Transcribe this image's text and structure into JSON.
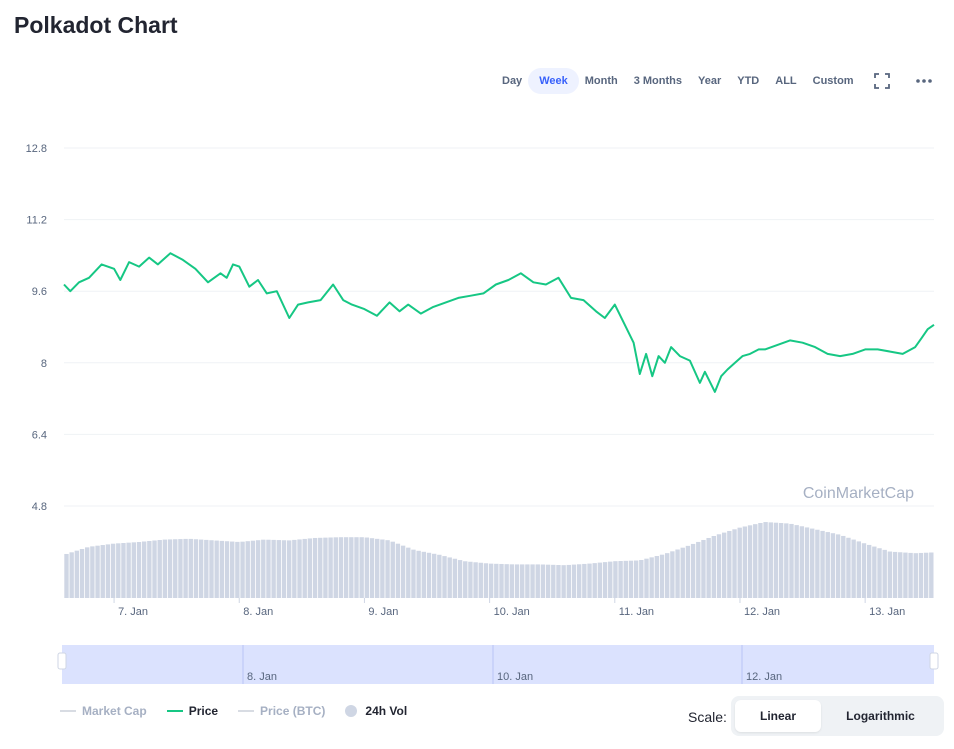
{
  "title": "Polkadot Chart",
  "ranges": [
    "Day",
    "Week",
    "Month",
    "3 Months",
    "Year",
    "YTD",
    "ALL",
    "Custom"
  ],
  "active_range": "Week",
  "icons": {
    "fullscreen": "fullscreen-icon",
    "more": "more-options-icon"
  },
  "watermark": "CoinMarketCap",
  "colors": {
    "price": "#16c784",
    "volume": "#cfd6e4",
    "grid": "#eff2f5",
    "navigator": "#cfd8fd",
    "accent": "#3861fb"
  },
  "legend": [
    {
      "label": "Market Cap",
      "kind": "line",
      "color": "#d8dce3",
      "text_color": "#a6b0c3"
    },
    {
      "label": "Price",
      "kind": "line",
      "color": "#16c784",
      "text_color": "#222531"
    },
    {
      "label": "Price (BTC)",
      "kind": "line",
      "color": "#d8dce3",
      "text_color": "#a6b0c3"
    },
    {
      "label": "24h Vol",
      "kind": "dot",
      "color": "#cfd6e4",
      "text_color": "#222531"
    }
  ],
  "scale": {
    "label": "Scale:",
    "options": [
      "Linear",
      "Logarithmic"
    ],
    "active": "Linear"
  },
  "chart_data": {
    "type": "line",
    "y_ticks": [
      "12.8",
      "11.2",
      "9.6",
      "8",
      "6.4",
      "4.8"
    ],
    "ylim": [
      4.8,
      12.8
    ],
    "x_ticks": [
      "7. Jan",
      "8. Jan",
      "9. Jan",
      "10. Jan",
      "11. Jan",
      "12. Jan",
      "13. Jan"
    ],
    "navigator_ticks": [
      "8. Jan",
      "10. Jan",
      "12. Jan"
    ],
    "price_series": {
      "name": "Price",
      "x": [
        6.6,
        6.65,
        6.72,
        6.8,
        6.9,
        7.0,
        7.05,
        7.12,
        7.2,
        7.28,
        7.35,
        7.45,
        7.55,
        7.65,
        7.75,
        7.85,
        7.9,
        7.95,
        8.0,
        8.08,
        8.15,
        8.22,
        8.3,
        8.4,
        8.47,
        8.55,
        8.65,
        8.75,
        8.83,
        8.9,
        9.0,
        9.1,
        9.2,
        9.28,
        9.35,
        9.45,
        9.55,
        9.65,
        9.75,
        9.85,
        9.95,
        10.05,
        10.15,
        10.25,
        10.35,
        10.45,
        10.55,
        10.65,
        10.75,
        10.85,
        10.92,
        11.0,
        11.08,
        11.15,
        11.2,
        11.25,
        11.3,
        11.35,
        11.4,
        11.45,
        11.52,
        11.6,
        11.68,
        11.72,
        11.8,
        11.85,
        11.9,
        11.96,
        12.02,
        12.08,
        12.15,
        12.2,
        12.3,
        12.4,
        12.5,
        12.6,
        12.7,
        12.8,
        12.9,
        13.0,
        13.1,
        13.2,
        13.3,
        13.4,
        13.45,
        13.5,
        13.55
      ],
      "y": [
        9.75,
        9.6,
        9.8,
        9.9,
        10.2,
        10.1,
        9.85,
        10.25,
        10.15,
        10.35,
        10.2,
        10.45,
        10.3,
        10.1,
        9.8,
        10.0,
        9.9,
        10.2,
        10.15,
        9.7,
        9.85,
        9.55,
        9.6,
        9.0,
        9.3,
        9.35,
        9.4,
        9.75,
        9.4,
        9.3,
        9.2,
        9.05,
        9.35,
        9.15,
        9.3,
        9.1,
        9.25,
        9.35,
        9.45,
        9.5,
        9.55,
        9.75,
        9.85,
        10.0,
        9.8,
        9.75,
        9.9,
        9.45,
        9.4,
        9.15,
        9.0,
        9.3,
        8.85,
        8.45,
        7.75,
        8.2,
        7.7,
        8.15,
        8.0,
        8.35,
        8.15,
        8.05,
        7.55,
        7.8,
        7.35,
        7.7,
        7.85,
        8.0,
        8.15,
        8.2,
        8.3,
        8.3,
        8.4,
        8.5,
        8.45,
        8.35,
        8.2,
        8.15,
        8.2,
        8.3,
        8.3,
        8.25,
        8.2,
        8.35,
        8.55,
        8.75,
        8.85
      ]
    },
    "volume_series": {
      "name": "24h Vol",
      "x": [
        6.6,
        6.8,
        7.0,
        7.2,
        7.4,
        7.6,
        7.8,
        8.0,
        8.2,
        8.4,
        8.6,
        8.8,
        9.0,
        9.2,
        9.4,
        9.6,
        9.8,
        10.0,
        10.2,
        10.4,
        10.6,
        10.8,
        11.0,
        11.2,
        11.4,
        11.6,
        11.8,
        12.0,
        12.2,
        12.4,
        12.6,
        12.8,
        13.0,
        13.2,
        13.4,
        13.55
      ],
      "relative_level": [
        0.54,
        0.64,
        0.68,
        0.7,
        0.73,
        0.74,
        0.72,
        0.7,
        0.73,
        0.72,
        0.75,
        0.76,
        0.76,
        0.72,
        0.6,
        0.54,
        0.46,
        0.43,
        0.42,
        0.42,
        0.41,
        0.43,
        0.46,
        0.47,
        0.55,
        0.66,
        0.78,
        0.88,
        0.95,
        0.93,
        0.86,
        0.79,
        0.68,
        0.58,
        0.56,
        0.57
      ]
    }
  }
}
